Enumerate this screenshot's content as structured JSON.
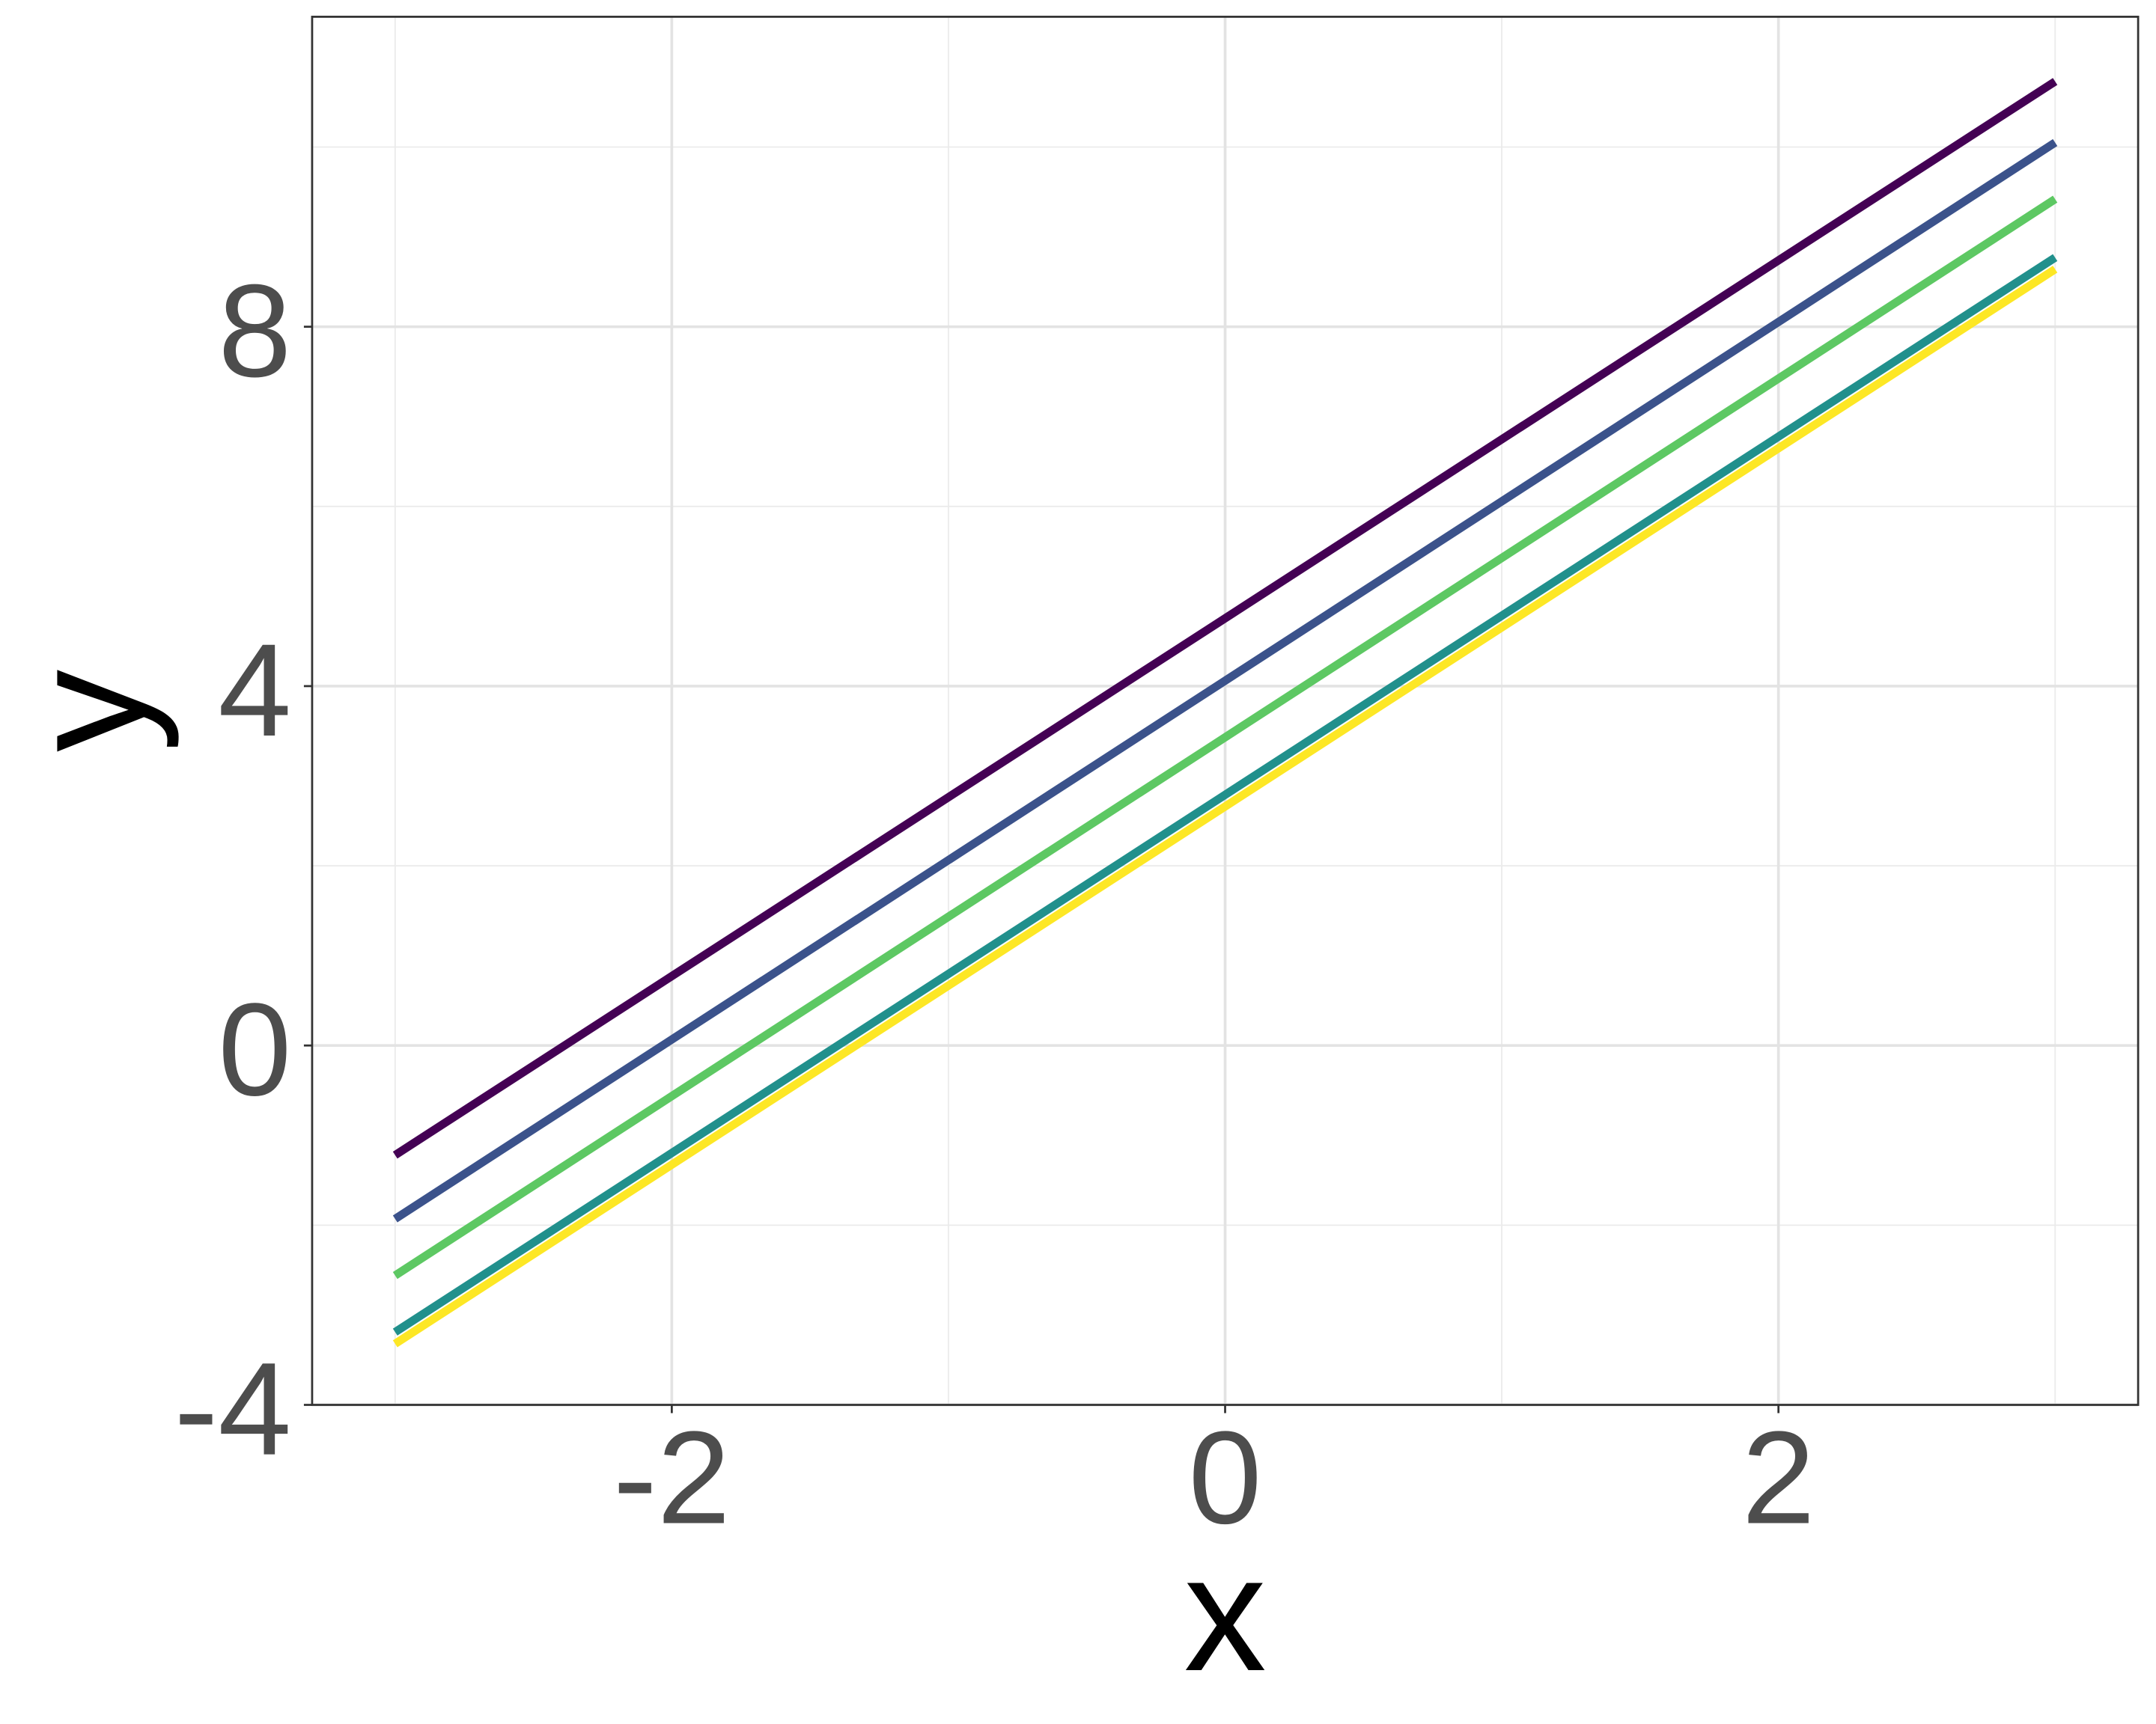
{
  "chart_data": {
    "type": "line",
    "title": "",
    "xlabel": "x",
    "ylabel": "y",
    "xlim": [
      -3.3,
      3.3
    ],
    "ylim": [
      -4.0,
      11.45
    ],
    "xticks": [
      -2,
      0,
      2
    ],
    "yticks": [
      -4,
      0,
      4,
      8
    ],
    "xtick_labels": [
      "-2",
      "0",
      "2"
    ],
    "ytick_labels": [
      "-4",
      "0",
      "4",
      "8"
    ],
    "grid": true,
    "legend": "none",
    "x": [
      -3,
      3
    ],
    "series": [
      {
        "color": "#440154",
        "values": [
          -1.22,
          10.73
        ]
      },
      {
        "color": "#3B528B",
        "values": [
          -1.93,
          10.05
        ]
      },
      {
        "color": "#5DC863",
        "values": [
          -2.56,
          9.42
        ]
      },
      {
        "color": "#21908C",
        "values": [
          -3.19,
          8.77
        ]
      },
      {
        "color": "#FDE725",
        "values": [
          -3.32,
          8.64
        ]
      }
    ]
  }
}
